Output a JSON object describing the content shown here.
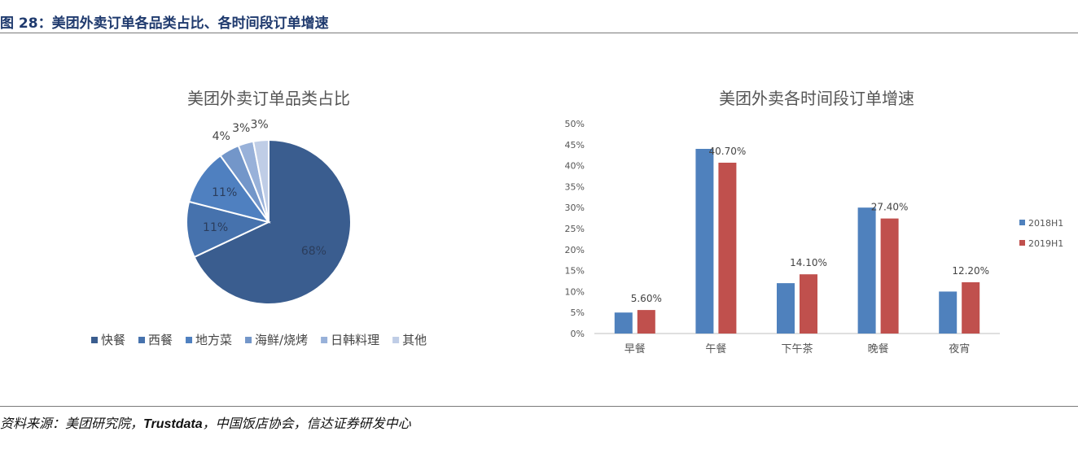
{
  "page": {
    "figure_title": "图 28：美团外卖订单各品类占比、各时间段订单增速",
    "source_prefix": "资料来源：美团研究院，",
    "source_brand": "Trustdata",
    "source_suffix": "，中国饭店协会，信达证券研发中心"
  },
  "colors": {
    "title_blue": "#1f3a6e",
    "pie": [
      "#3a5d8f",
      "#4672ad",
      "#4f80c0",
      "#7396c9",
      "#98b1d9",
      "#bfcde6"
    ],
    "bar_2018": "#4f81bd",
    "bar_2019": "#c0504d"
  },
  "chart_data": [
    {
      "type": "pie",
      "title": "美团外卖订单品类占比",
      "categories": [
        "快餐",
        "西餐",
        "地方菜",
        "海鲜/烧烤",
        "日韩料理",
        "其他"
      ],
      "values": [
        68,
        11,
        11,
        4,
        3,
        3
      ],
      "labels": [
        "68%",
        "11%",
        "11%",
        "4%",
        "3%",
        "3%"
      ],
      "legend": "bottom"
    },
    {
      "type": "bar",
      "title": "美团外卖各时间段订单增速",
      "categories": [
        "早餐",
        "午餐",
        "下午茶",
        "晚餐",
        "夜宵"
      ],
      "series": [
        {
          "name": "2018H1",
          "values": [
            5.0,
            44.0,
            12.0,
            30.0,
            10.0
          ],
          "data_labels": [
            "",
            "",
            "",
            "",
            ""
          ]
        },
        {
          "name": "2019H1",
          "values": [
            5.6,
            40.7,
            14.1,
            27.4,
            12.2
          ],
          "data_labels": [
            "5.60%",
            "40.70%",
            "14.10%",
            "27.40%",
            "12.20%"
          ]
        }
      ],
      "ylim": [
        0,
        50
      ],
      "yticks": [
        "0%",
        "5%",
        "10%",
        "15%",
        "20%",
        "25%",
        "30%",
        "35%",
        "40%",
        "45%",
        "50%"
      ],
      "grid": false,
      "legend": "right"
    }
  ]
}
